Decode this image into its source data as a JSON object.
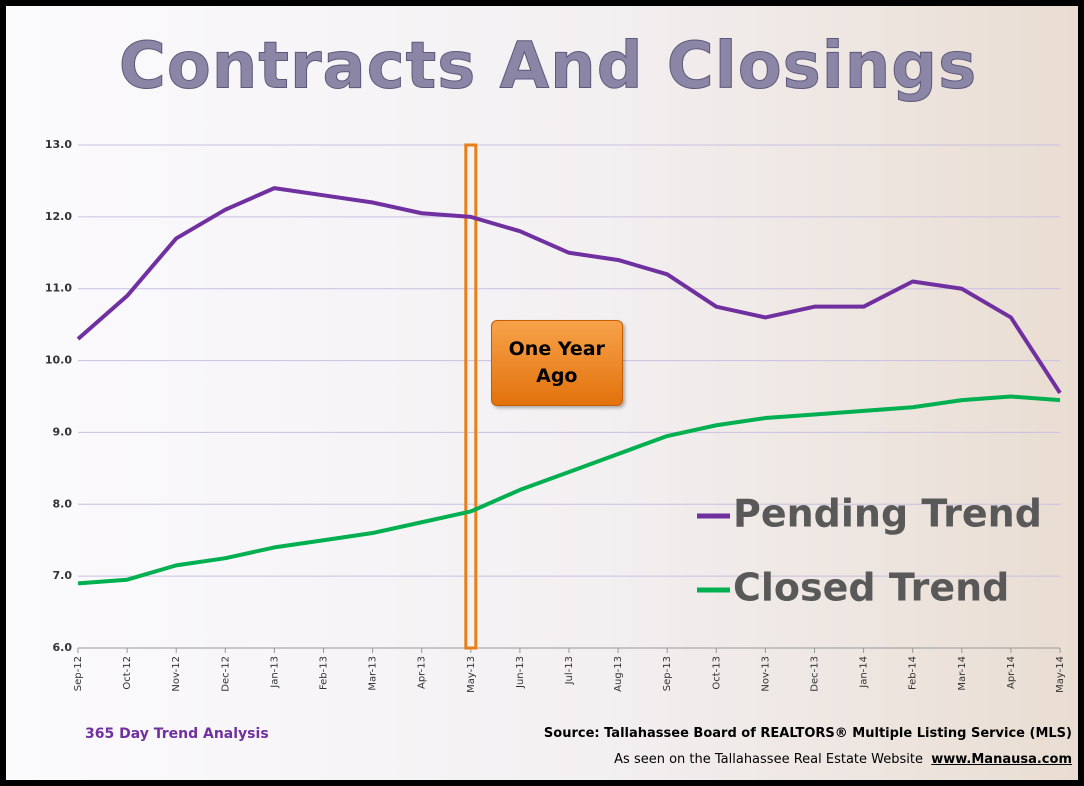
{
  "chart_data": {
    "type": "line",
    "title": "Contracts And Closings",
    "categories": [
      "Sep-12",
      "Oct-12",
      "Nov-12",
      "Dec-12",
      "Jan-13",
      "Feb-13",
      "Mar-13",
      "Apr-13",
      "May-13",
      "Jun-13",
      "Jul-13",
      "Aug-13",
      "Sep-13",
      "Oct-13",
      "Nov-13",
      "Dec-13",
      "Jan-14",
      "Feb-14",
      "Mar-14",
      "Apr-14",
      "May-14"
    ],
    "series": [
      {
        "name": "Pending Trend",
        "color": "#7030a0",
        "values": [
          10.3,
          10.9,
          11.7,
          12.1,
          12.4,
          12.3,
          12.2,
          12.05,
          12.0,
          11.8,
          11.5,
          11.4,
          11.2,
          10.75,
          10.6,
          10.75,
          10.75,
          11.1,
          11.0,
          10.6,
          9.55
        ]
      },
      {
        "name": "Closed Trend",
        "color": "#00b050",
        "values": [
          6.9,
          6.95,
          7.15,
          7.25,
          7.4,
          7.5,
          7.6,
          7.75,
          7.9,
          8.2,
          8.45,
          8.7,
          8.95,
          9.1,
          9.2,
          9.25,
          9.3,
          9.35,
          9.45,
          9.5,
          9.45
        ]
      }
    ],
    "ylim": [
      6,
      13
    ],
    "yticks": [
      {
        "value": 6,
        "label": "6.0"
      },
      {
        "value": 7,
        "label": "7.0"
      },
      {
        "value": 8,
        "label": "8.0"
      },
      {
        "value": 9,
        "label": "9.0"
      },
      {
        "value": 10,
        "label": "10.0"
      },
      {
        "value": 11,
        "label": "11.0"
      },
      {
        "value": 12,
        "label": "12.0"
      },
      {
        "value": 13,
        "label": "13.0"
      }
    ],
    "grid": true,
    "annotation": {
      "text": "One Year Ago",
      "x": "May-13",
      "color": "#e8801a"
    },
    "footer": {
      "left": "365 Day Trend Analysis",
      "source": "Source: Tallahassee Board of REALTORS® Multiple Listing Service (MLS)",
      "seen": "As seen on the Tallahassee Real Estate Website",
      "url": "www.Manausa.com"
    }
  }
}
